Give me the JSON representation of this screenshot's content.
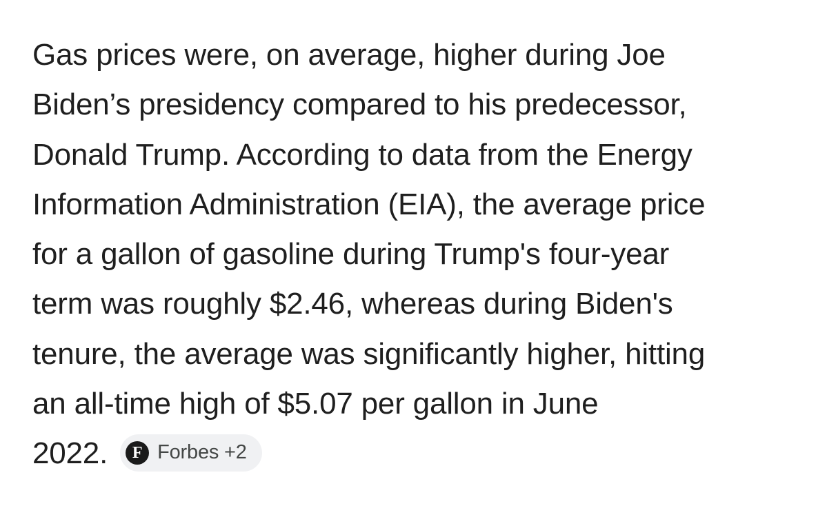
{
  "answer": {
    "lines": [
      "Gas prices were, on average, higher during Joe",
      "Biden’s presidency compared to his predecessor,",
      "Donald Trump. According to data from the Energy",
      "Information Administration (EIA), the average price",
      "for a gallon of gasoline during Trump's four-year",
      "term was roughly $2.46, whereas during Biden's",
      "tenure, the average was significantly higher, hitting",
      "an all-time high of $5.07 per gallon in June",
      "2022."
    ],
    "source_chip": {
      "icon_letter": "F",
      "icon": "forbes-logo-icon",
      "label": "Forbes +2"
    }
  }
}
